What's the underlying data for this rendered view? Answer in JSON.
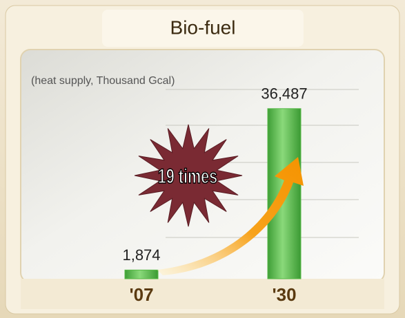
{
  "chart_data": {
    "type": "bar",
    "title": "Bio-fuel",
    "subtitle": "(heat supply, Thousand Gcal)",
    "annotation": "19 times",
    "categories": [
      "'07",
      "'30"
    ],
    "values": [
      1874,
      36487
    ],
    "value_labels": [
      "1,874",
      "36,487"
    ],
    "color": "#56b946",
    "ylim": [
      0,
      40000
    ]
  }
}
